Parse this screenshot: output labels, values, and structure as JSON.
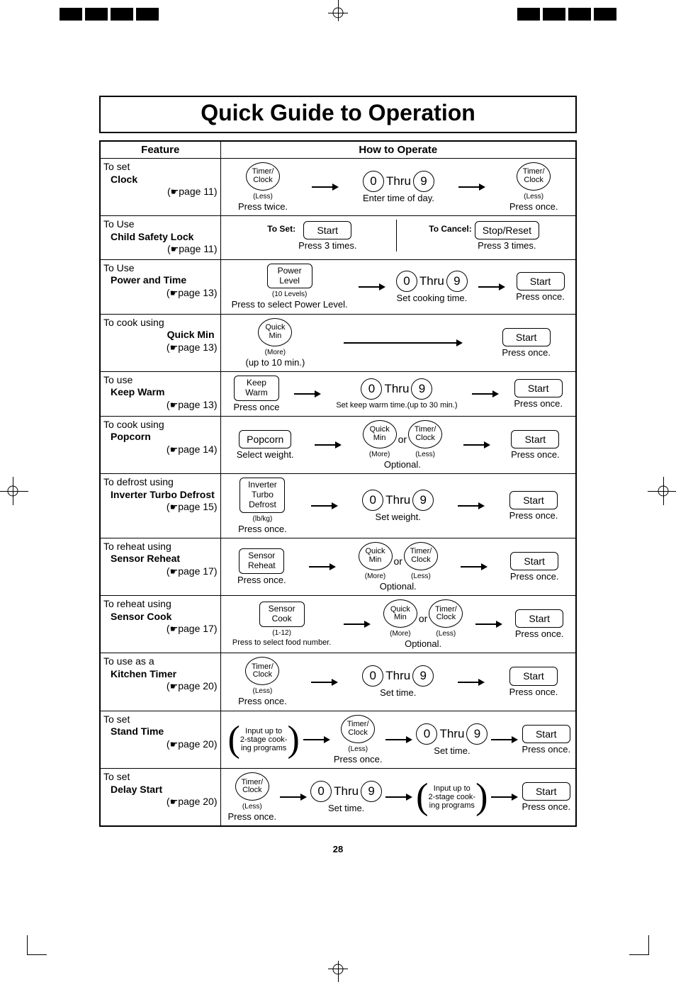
{
  "page_number": "28",
  "title": "Quick Guide to Operation",
  "headers": {
    "feature": "Feature",
    "howto": "How to Operate"
  },
  "common": {
    "thru": "Thru",
    "or": "or",
    "digit0": "0",
    "digit9": "9",
    "press_once": "Press once.",
    "press_twice": "Press twice.",
    "press_3": "Press 3 times.",
    "optional": "Optional.",
    "start": "Start",
    "timer_clock": "Timer/\nClock",
    "timer_clock_sub": "(Less)",
    "quick_min": "Quick\nMin",
    "quick_min_sub": "(More)",
    "arrow_color": "#000000"
  },
  "rows": [
    {
      "pre": "To set",
      "bold": "Clock",
      "page": "page 11",
      "steps": [
        {
          "type": "oval",
          "label": "Timer/\nClock",
          "sub": "(Less)",
          "cap": "Press twice."
        },
        {
          "type": "arrow"
        },
        {
          "type": "digits",
          "cap": "Enter time of day."
        },
        {
          "type": "arrow"
        },
        {
          "type": "oval",
          "label": "Timer/\nClock",
          "sub": "(Less)",
          "cap": "Press once."
        }
      ]
    },
    {
      "pre": "To Use ",
      "bold": "Child Safety Lock",
      "page": "page 11",
      "child_lock": {
        "set_label": "To Set:",
        "set_btn": "Start",
        "set_cap": "Press 3 times.",
        "cancel_label": "To Cancel:",
        "cancel_btn": "Stop/Reset",
        "cancel_cap": "Press 3 times."
      }
    },
    {
      "pre": "To Use",
      "bold": "Power and Time",
      "page": "page 13",
      "steps": [
        {
          "type": "tall",
          "line1": "Power",
          "line2": "Level",
          "sub": "(10 Levels)",
          "cap": "Press to select Power Level."
        },
        {
          "type": "arrow"
        },
        {
          "type": "digits",
          "cap": "Set cooking time."
        },
        {
          "type": "arrow"
        },
        {
          "type": "rect",
          "label": "Start",
          "cap": "Press once."
        }
      ]
    },
    {
      "pre": "To cook using",
      "bold": "Quick Min",
      "bold_align": "right",
      "page": "page 13",
      "steps": [
        {
          "type": "oval",
          "label": "Quick\nMin",
          "sub": "(More)",
          "cap": "(up to 10 min.)",
          "cap_align": "left"
        },
        {
          "type": "arrow-long"
        },
        {
          "type": "rect",
          "label": "Start",
          "cap": "Press once."
        }
      ]
    },
    {
      "pre": "To use",
      "bold": "Keep Warm",
      "page": "page 13",
      "steps": [
        {
          "type": "tall",
          "line1": "Keep",
          "line2": "Warm",
          "cap": "Press once"
        },
        {
          "type": "arrow"
        },
        {
          "type": "digits",
          "cap": "Set keep warm time.(up to 30 min.)",
          "cap_small": true
        },
        {
          "type": "arrow"
        },
        {
          "type": "rect",
          "label": "Start",
          "cap": "Press once."
        }
      ]
    },
    {
      "pre": "To cook using",
      "bold": "Popcorn",
      "page": "page 14",
      "steps": [
        {
          "type": "rect",
          "label": "Popcorn",
          "cap": "Select weight."
        },
        {
          "type": "arrow"
        },
        {
          "type": "qm-or-tc",
          "cap": "Optional."
        },
        {
          "type": "arrow"
        },
        {
          "type": "rect",
          "label": "Start",
          "cap": "Press once."
        }
      ]
    },
    {
      "pre": "To defrost using",
      "bold": "Inverter Turbo Defrost",
      "page": "page 15",
      "steps": [
        {
          "type": "tall",
          "line1": "Inverter",
          "line2": "Turbo",
          "line3": "Defrost",
          "sub": "(lb/kg)",
          "cap": "Press once."
        },
        {
          "type": "arrow"
        },
        {
          "type": "digits",
          "cap": "Set weight."
        },
        {
          "type": "arrow"
        },
        {
          "type": "rect",
          "label": "Start",
          "cap": "Press once."
        }
      ]
    },
    {
      "pre": "To reheat using",
      "bold": "Sensor Reheat",
      "page": "page 17",
      "steps": [
        {
          "type": "tall",
          "line1": "Sensor",
          "line2": "Reheat",
          "cap": "Press once."
        },
        {
          "type": "arrow"
        },
        {
          "type": "qm-or-tc",
          "cap": "Optional."
        },
        {
          "type": "arrow"
        },
        {
          "type": "rect",
          "label": "Start",
          "cap": "Press once."
        }
      ]
    },
    {
      "pre": "To reheat using",
      "bold": "Sensor Cook",
      "page": "page 17",
      "steps": [
        {
          "type": "tall",
          "line1": "Sensor",
          "line2": "Cook",
          "sub": "(1-12)",
          "cap": "Press to select food number.",
          "cap_small": true
        },
        {
          "type": "arrow"
        },
        {
          "type": "qm-or-tc",
          "cap": "Optional."
        },
        {
          "type": "arrow"
        },
        {
          "type": "rect",
          "label": "Start",
          "cap": "Press once."
        }
      ]
    },
    {
      "pre": "To use as a",
      "bold": "Kitchen Timer",
      "page": "page 20",
      "steps": [
        {
          "type": "oval",
          "label": "Timer/\nClock",
          "sub": "(Less)",
          "cap": "Press once."
        },
        {
          "type": "arrow"
        },
        {
          "type": "digits",
          "cap": "Set time."
        },
        {
          "type": "arrow"
        },
        {
          "type": "rect",
          "label": "Start",
          "cap": "Press once."
        }
      ]
    },
    {
      "pre": "To set",
      "bold": "Stand Time",
      "page": "page 20",
      "steps": [
        {
          "type": "paren",
          "text": "Input up to\n2-stage cook-\ning programs"
        },
        {
          "type": "arrow"
        },
        {
          "type": "oval",
          "label": "Timer/\nClock",
          "sub": "(Less)",
          "cap": "Press once."
        },
        {
          "type": "arrow"
        },
        {
          "type": "digits",
          "cap": "Set time."
        },
        {
          "type": "arrow"
        },
        {
          "type": "rect",
          "label": "Start",
          "cap": "Press once."
        }
      ]
    },
    {
      "pre": "To set",
      "bold": "Delay Start",
      "page": "page 20",
      "steps": [
        {
          "type": "oval",
          "label": "Timer/\nClock",
          "sub": "(Less)",
          "cap": "Press once."
        },
        {
          "type": "arrow"
        },
        {
          "type": "digits",
          "cap": "Set time."
        },
        {
          "type": "arrow"
        },
        {
          "type": "paren",
          "text": "Input up to\n2-stage cook-\ning programs"
        },
        {
          "type": "arrow"
        },
        {
          "type": "rect",
          "label": "Start",
          "cap": "Press once."
        }
      ]
    }
  ]
}
